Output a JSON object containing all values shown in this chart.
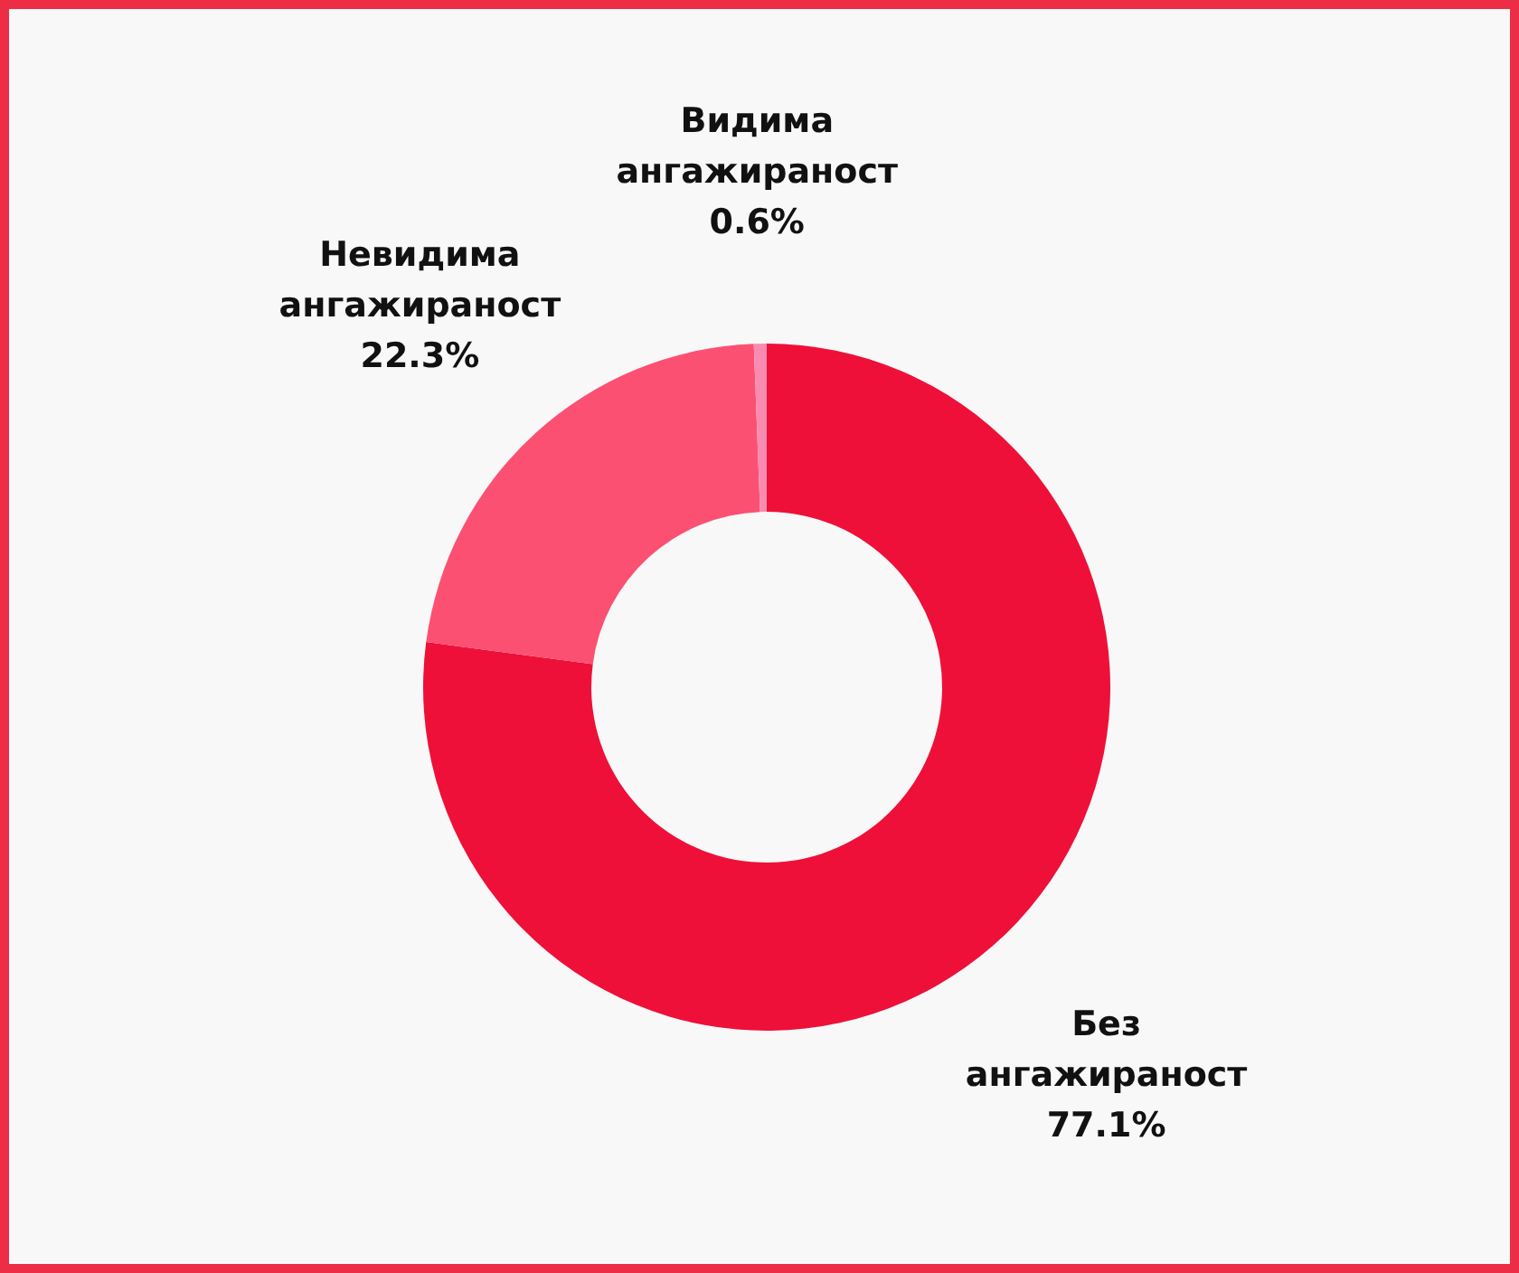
{
  "chart_data": {
    "type": "donut",
    "categories": [
      "Без ангажираност",
      "Невидима ангажираност",
      "Видима ангажираност"
    ],
    "values": [
      77.1,
      22.3,
      0.6
    ],
    "colors": [
      "#ee1039",
      "#fc5073",
      "#f98bb0"
    ],
    "value_labels": [
      "77.1%",
      "22.3%",
      "0.6%"
    ],
    "legend": false
  }
}
